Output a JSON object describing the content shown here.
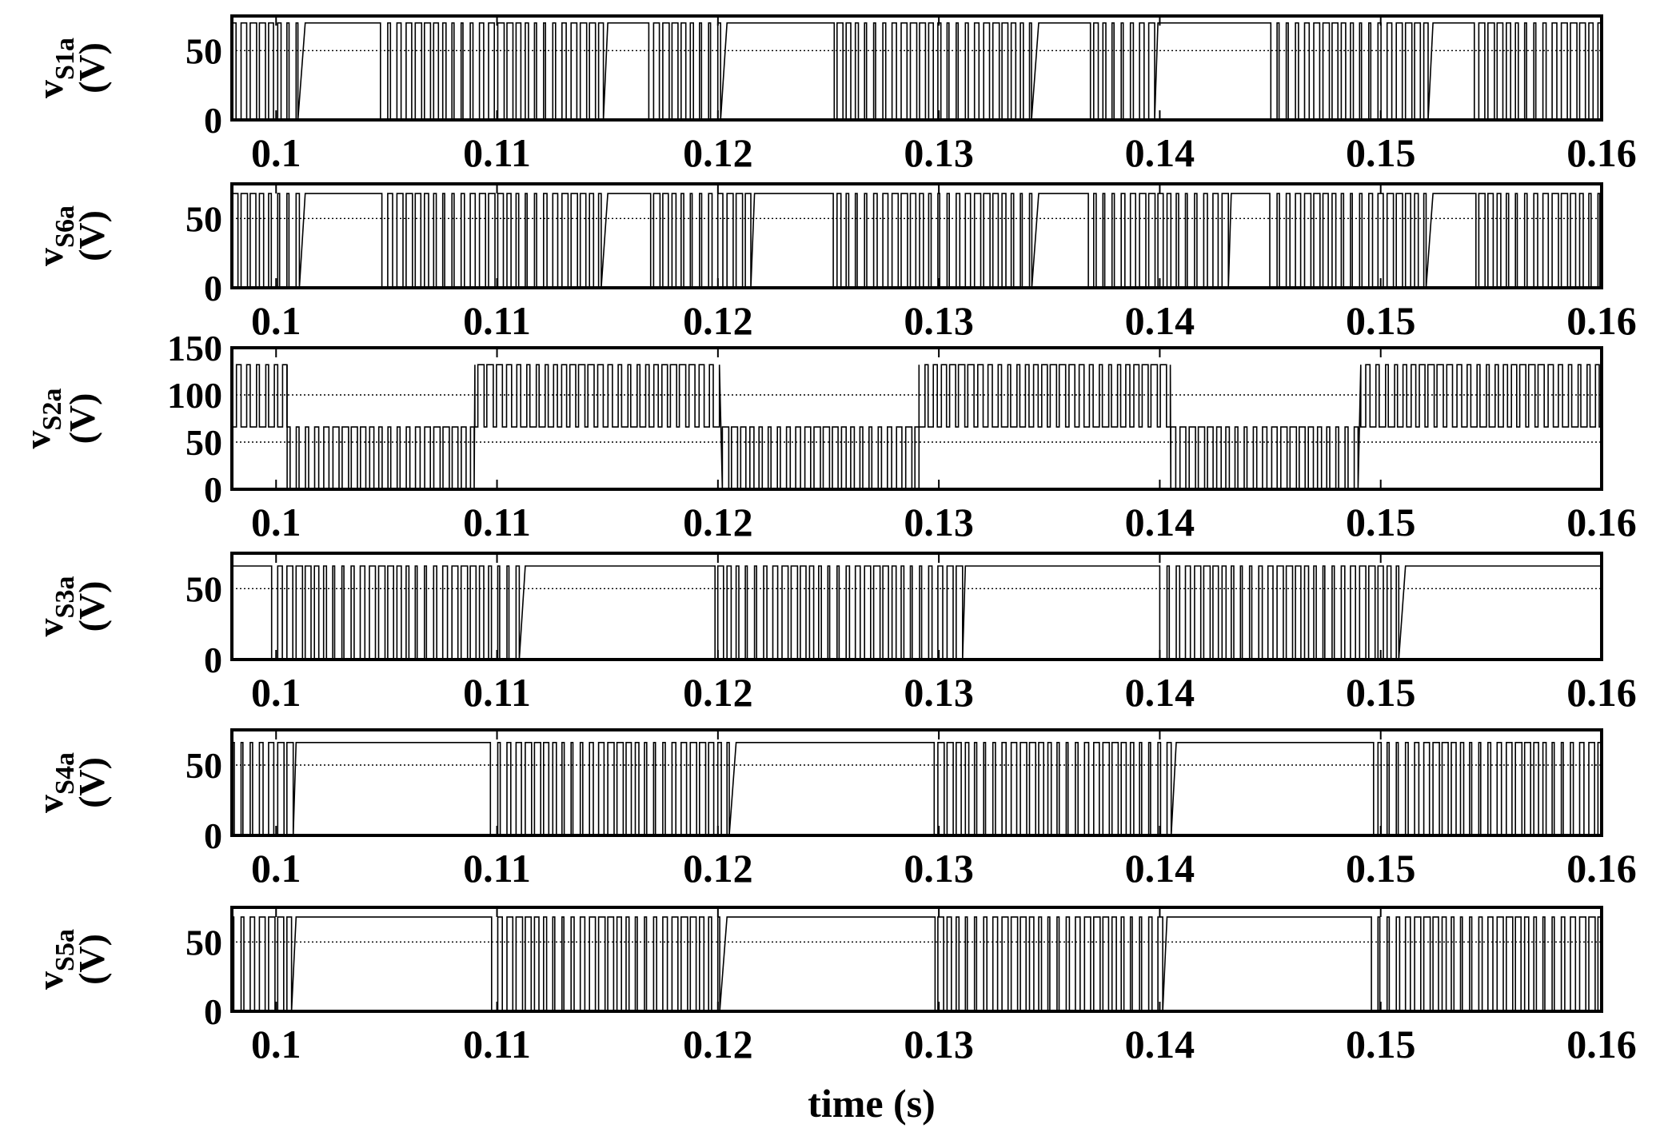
{
  "chart_data": [
    {
      "type": "line",
      "ylabel_main": "v",
      "ylabel_sub": "S1a",
      "ylabel_unit": "(V)",
      "x_range": [
        0.098,
        0.16
      ],
      "xticks": [
        0.1,
        0.11,
        0.12,
        0.13,
        0.14,
        0.15,
        0.16
      ],
      "xtick_labels": [
        "0.1",
        "0.11",
        "0.12",
        "0.13",
        "0.14",
        "0.15",
        "0.16"
      ],
      "ylim": [
        0,
        75
      ],
      "yticks": [
        0,
        50
      ],
      "ytick_labels": [
        "0",
        "50"
      ],
      "reference_lines": [
        50
      ],
      "high_level": 70,
      "switching_intervals": [
        [
          0.098,
          0.1012
        ],
        [
          0.1045,
          0.1146
        ],
        [
          0.1166,
          0.1201
        ],
        [
          0.1247,
          0.1342
        ],
        [
          0.1362,
          0.1396
        ],
        [
          0.1447,
          0.152
        ],
        [
          0.1537,
          0.16
        ]
      ]
    },
    {
      "type": "line",
      "ylabel_main": "v",
      "ylabel_sub": "S6a",
      "ylabel_unit": "(V)",
      "x_range": [
        0.098,
        0.16
      ],
      "xticks": [
        0.1,
        0.11,
        0.12,
        0.13,
        0.14,
        0.15,
        0.16
      ],
      "xtick_labels": [
        "0.1",
        "0.11",
        "0.12",
        "0.13",
        "0.14",
        "0.15",
        "0.16"
      ],
      "ylim": [
        0,
        75
      ],
      "yticks": [
        0,
        50
      ],
      "ytick_labels": [
        "0",
        "50"
      ],
      "reference_lines": [
        50
      ],
      "high_level": 68,
      "switching_intervals": [
        [
          0.098,
          0.1012
        ],
        [
          0.1045,
          0.1148
        ],
        [
          0.1166,
          0.1215
        ],
        [
          0.1247,
          0.1345
        ],
        [
          0.1362,
          0.1432
        ],
        [
          0.1447,
          0.152
        ],
        [
          0.1537,
          0.16
        ]
      ]
    },
    {
      "type": "line",
      "ylabel_main": "v",
      "ylabel_sub": "S2a",
      "ylabel_unit": "(V)",
      "x_range": [
        0.098,
        0.16
      ],
      "xticks": [
        0.1,
        0.11,
        0.12,
        0.13,
        0.14,
        0.15,
        0.16
      ],
      "xtick_labels": [
        "0.1",
        "0.11",
        "0.12",
        "0.13",
        "0.14",
        "0.15",
        "0.16"
      ],
      "ylim": [
        0,
        150
      ],
      "yticks": [
        0,
        50,
        100,
        150
      ],
      "ytick_labels": [
        "0",
        "50",
        "100",
        "150"
      ],
      "reference_lines": [
        50,
        100
      ],
      "levels": {
        "high": 132,
        "mid": 66
      },
      "segments": [
        {
          "range": [
            0.098,
            0.1005
          ],
          "mode": "high"
        },
        {
          "range": [
            0.1005,
            0.109
          ],
          "mode": "low"
        },
        {
          "range": [
            0.109,
            0.1202
          ],
          "mode": "high"
        },
        {
          "range": [
            0.1202,
            0.1291
          ],
          "mode": "low"
        },
        {
          "range": [
            0.1291,
            0.1405
          ],
          "mode": "high"
        },
        {
          "range": [
            0.1405,
            0.1491
          ],
          "mode": "low"
        },
        {
          "range": [
            0.1491,
            0.16
          ],
          "mode": "high"
        }
      ]
    },
    {
      "type": "line",
      "ylabel_main": "v",
      "ylabel_sub": "S3a",
      "ylabel_unit": "(V)",
      "x_range": [
        0.098,
        0.16
      ],
      "xticks": [
        0.1,
        0.11,
        0.12,
        0.13,
        0.14,
        0.15,
        0.16
      ],
      "xtick_labels": [
        "0.1",
        "0.11",
        "0.12",
        "0.13",
        "0.14",
        "0.15",
        "0.16"
      ],
      "ylim": [
        0,
        75
      ],
      "yticks": [
        0,
        50
      ],
      "ytick_labels": [
        "0",
        "50"
      ],
      "reference_lines": [
        50
      ],
      "high_level": 66,
      "switching_intervals": [
        [
          0.0995,
          0.111
        ],
        [
          0.1195,
          0.131
        ],
        [
          0.1395,
          0.151
        ],
        [
          0.1595,
          0.16
        ]
      ]
    },
    {
      "type": "line",
      "ylabel_main": "v",
      "ylabel_sub": "S4a",
      "ylabel_unit": "(V)",
      "x_range": [
        0.098,
        0.16
      ],
      "xticks": [
        0.1,
        0.11,
        0.12,
        0.13,
        0.14,
        0.15,
        0.16
      ],
      "xtick_labels": [
        "0.1",
        "0.11",
        "0.12",
        "0.13",
        "0.14",
        "0.15",
        "0.16"
      ],
      "ylim": [
        0,
        75
      ],
      "yticks": [
        0,
        50
      ],
      "ytick_labels": [
        "0",
        "50"
      ],
      "reference_lines": [
        50
      ],
      "high_level": 66,
      "switching_intervals": [
        [
          0.098,
          0.1007
        ],
        [
          0.1093,
          0.1205
        ],
        [
          0.1293,
          0.1405
        ],
        [
          0.1493,
          0.16
        ]
      ]
    },
    {
      "type": "line",
      "ylabel_main": "v",
      "ylabel_sub": "S5a",
      "ylabel_unit": "(V)",
      "x_range": [
        0.098,
        0.16
      ],
      "xticks": [
        0.1,
        0.11,
        0.12,
        0.13,
        0.14,
        0.15,
        0.16
      ],
      "xtick_labels": [
        "0.1",
        "0.11",
        "0.12",
        "0.13",
        "0.14",
        "0.15",
        "0.16"
      ],
      "ylim": [
        0,
        75
      ],
      "yticks": [
        0,
        50
      ],
      "ytick_labels": [
        "0",
        "50"
      ],
      "reference_lines": [
        50
      ],
      "high_level": 68,
      "switching_intervals": [
        [
          0.098,
          0.1007
        ],
        [
          0.1093,
          0.12
        ],
        [
          0.1293,
          0.14
        ],
        [
          0.1493,
          0.16
        ]
      ]
    }
  ],
  "xlabel": "time (s)"
}
